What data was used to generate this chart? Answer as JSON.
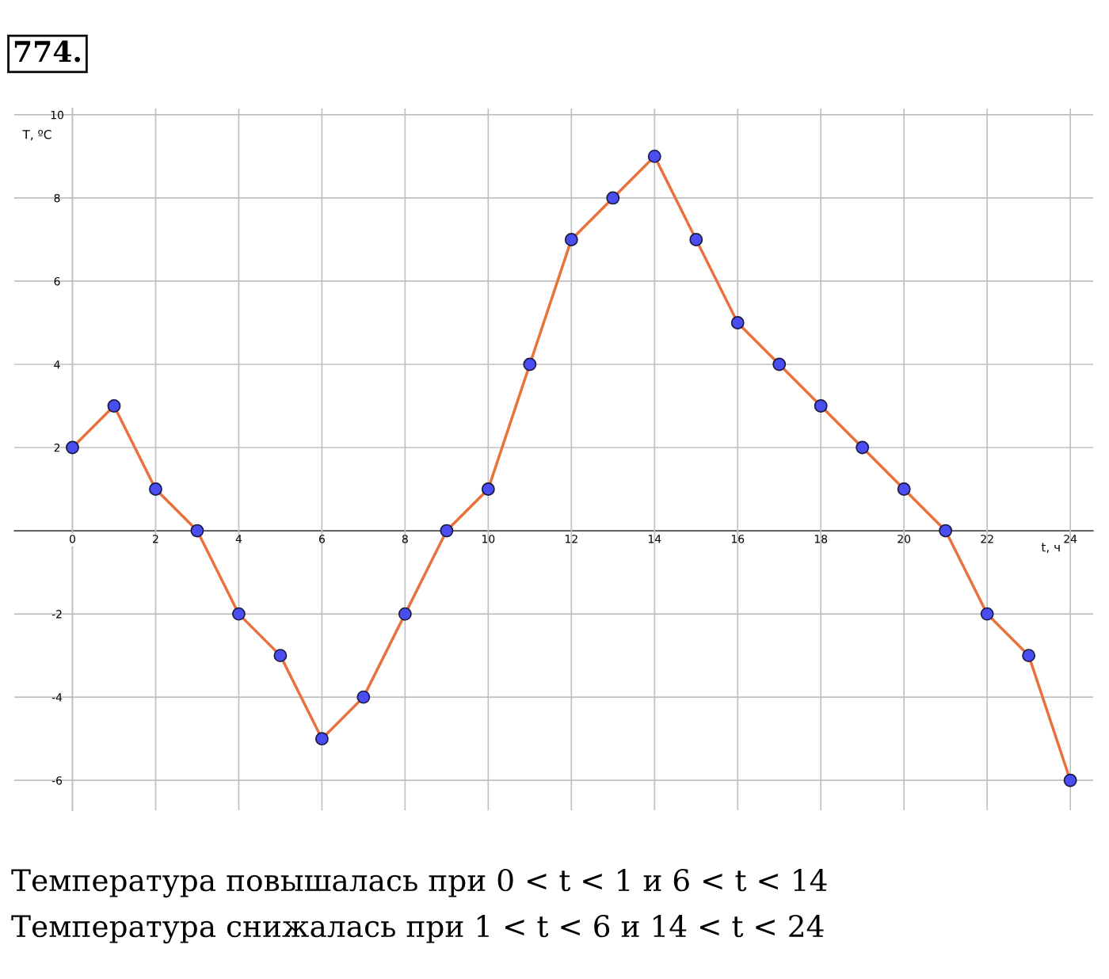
{
  "chart_data": {
    "type": "line",
    "title": "774.",
    "xlabel": "t, ч",
    "ylabel": "T, ºC",
    "x": [
      0,
      1,
      2,
      3,
      4,
      5,
      6,
      7,
      8,
      9,
      10,
      11,
      12,
      13,
      14,
      15,
      16,
      17,
      18,
      19,
      20,
      21,
      22,
      23,
      24
    ],
    "series": [
      {
        "color": "#e8713c",
        "values": [
          2,
          3,
          1,
          0,
          -2,
          -3,
          -5,
          -4,
          -2,
          0,
          1,
          4,
          7,
          8,
          9,
          7,
          5,
          4,
          3,
          2,
          1,
          0,
          -2,
          -3,
          -6
        ],
        "colors": [
          "#4a4ef0",
          "#4a4ef0",
          "#4a4ef0",
          "#4a4ef0",
          "#4a4ef0",
          "#4a4ef0",
          "#4a4ef0",
          "#4a4ef0",
          "#4a4ef0",
          "#4a4ef0",
          "#4a4ef0",
          "#4a4ef0",
          "#4a4ef0",
          "#4a4ef0",
          "#4a4ef0",
          "#4a4ef0",
          "#4a4ef0",
          "#4a4ef0",
          "#4a4ef0",
          "#4a4ef0",
          "#4a4ef0",
          "#4a4ef0",
          "#4a4ef0",
          "#4a4ef0",
          "#4a4ef0"
        ]
      }
    ],
    "xlim": [
      -1.4,
      24.55
    ],
    "ylim": [
      -6.72,
      10.15
    ],
    "xticks": [
      0,
      2,
      4,
      6,
      8,
      10,
      12,
      14,
      16,
      18,
      20,
      22,
      24
    ],
    "yticks": [
      -6,
      -4,
      -2,
      2,
      4,
      6,
      8,
      10
    ],
    "grid": true,
    "marker": "circle",
    "line_style": "solid",
    "annotations": [
      "Температура повышалась при 0 < t < 1 и 6 < t < 14",
      "Температура снижалась при 1 < t < 6 и 14 < t < 24"
    ]
  }
}
